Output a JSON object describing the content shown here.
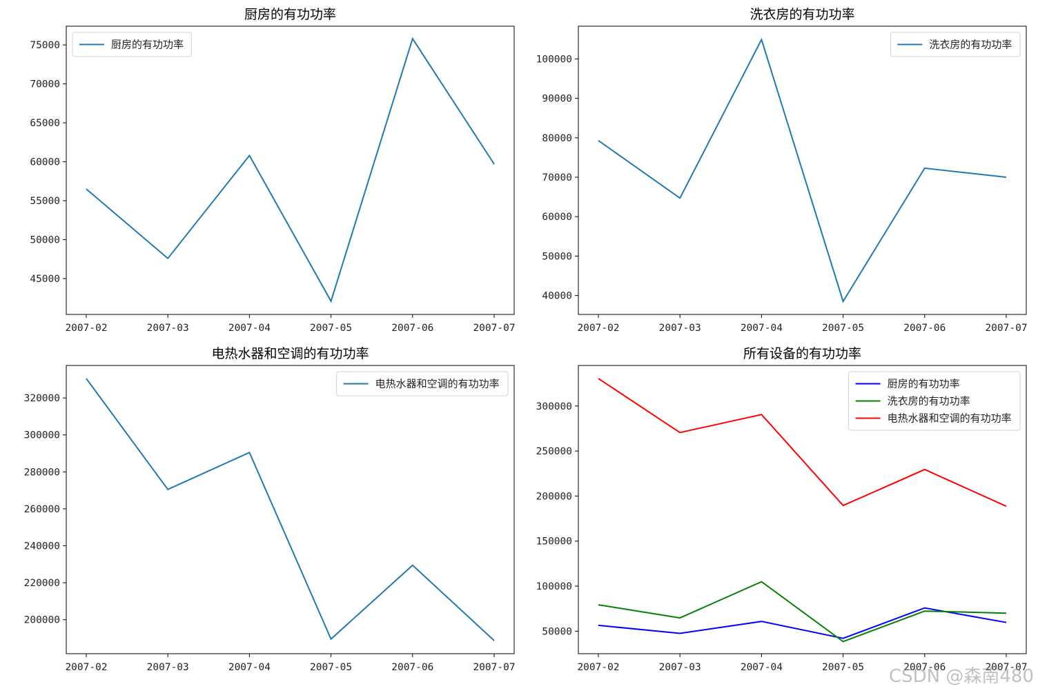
{
  "watermark": "CSDN @森南480",
  "chart_data": [
    {
      "type": "line",
      "title": "厨房的有功功率",
      "x": [
        "2007-02",
        "2007-03",
        "2007-04",
        "2007-05",
        "2007-06",
        "2007-07"
      ],
      "series": [
        {
          "name": "厨房的有功功率",
          "color": "#1f77b4",
          "values": [
            56500,
            47600,
            60800,
            42100,
            75800,
            59700
          ]
        }
      ],
      "yticks": [
        45000,
        50000,
        55000,
        60000,
        65000,
        70000,
        75000
      ],
      "ylim": [
        40400,
        77400
      ],
      "legend": "top-left",
      "grid": false
    },
    {
      "type": "line",
      "title": "洗衣房的有功功率",
      "x": [
        "2007-02",
        "2007-03",
        "2007-04",
        "2007-05",
        "2007-06",
        "2007-07"
      ],
      "series": [
        {
          "name": "洗衣房的有功功率",
          "color": "#1f77b4",
          "values": [
            79300,
            64700,
            104900,
            38500,
            72300,
            70000
          ]
        }
      ],
      "yticks": [
        40000,
        50000,
        60000,
        70000,
        80000,
        90000,
        100000
      ],
      "ylim": [
        35200,
        108300
      ],
      "legend": "top-right",
      "grid": false
    },
    {
      "type": "line",
      "title": "电热水器和空调的有功功率",
      "x": [
        "2007-02",
        "2007-03",
        "2007-04",
        "2007-05",
        "2007-06",
        "2007-07"
      ],
      "series": [
        {
          "name": "电热水器和空调的有功功率",
          "color": "#1f77b4",
          "values": [
            330500,
            270500,
            290500,
            189500,
            229500,
            188700
          ]
        }
      ],
      "yticks": [
        200000,
        220000,
        240000,
        260000,
        280000,
        300000,
        320000
      ],
      "ylim": [
        181600,
        337600
      ],
      "legend": "top-right",
      "grid": false
    },
    {
      "type": "line",
      "title": "所有设备的有功功率",
      "x": [
        "2007-02",
        "2007-03",
        "2007-04",
        "2007-05",
        "2007-06",
        "2007-07"
      ],
      "series": [
        {
          "name": "厨房的有功功率",
          "color": "#0000ff",
          "values": [
            56500,
            47600,
            60800,
            42100,
            75800,
            59700
          ]
        },
        {
          "name": "洗衣房的有功功率",
          "color": "#008000",
          "values": [
            79300,
            64700,
            104900,
            38500,
            72300,
            70000
          ]
        },
        {
          "name": "电热水器和空调的有功功率",
          "color": "#ff0000",
          "values": [
            330500,
            270500,
            290500,
            189500,
            229500,
            188700
          ]
        }
      ],
      "yticks": [
        50000,
        100000,
        150000,
        200000,
        250000,
        300000
      ],
      "ylim": [
        25000,
        345000
      ],
      "legend": "top-right",
      "grid": false
    }
  ]
}
